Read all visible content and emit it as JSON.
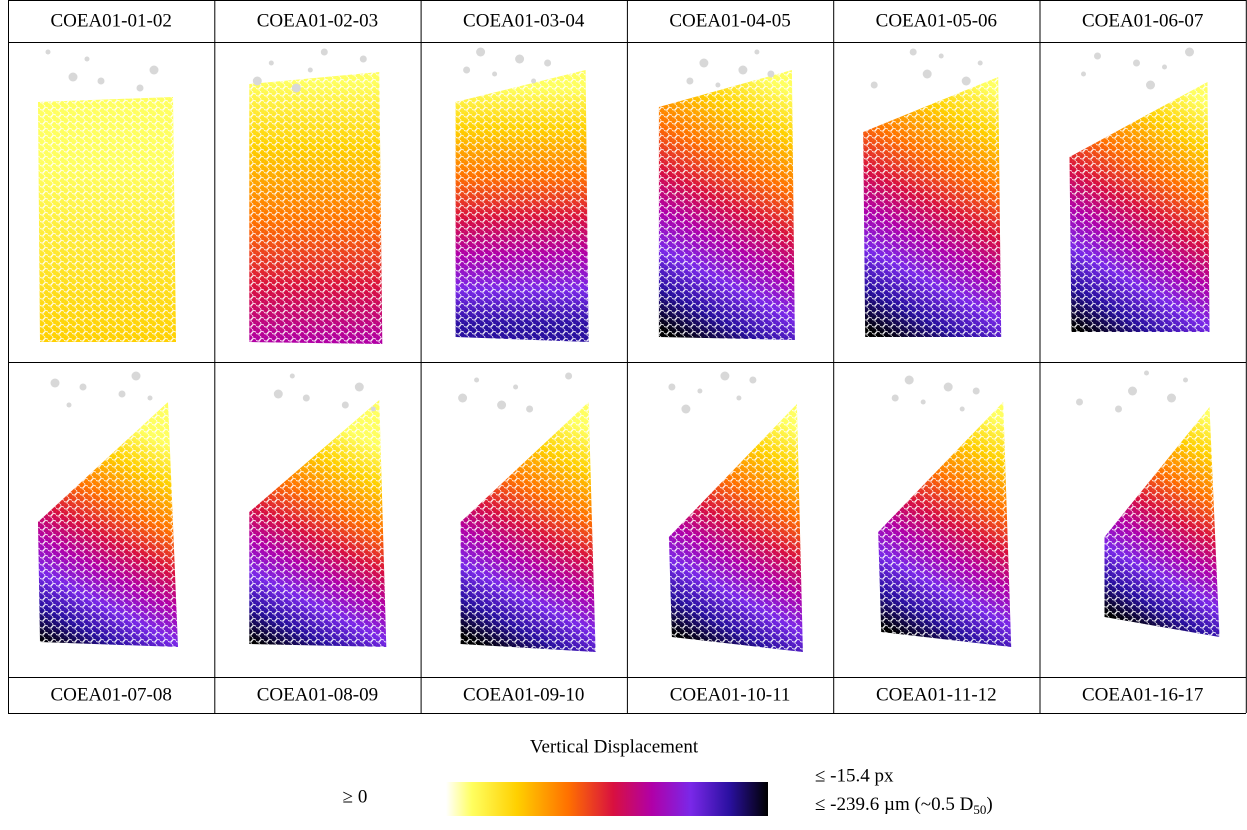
{
  "columns_top": [
    "COEA01-01-02",
    "COEA01-02-03",
    "COEA01-03-04",
    "COEA01-04-05",
    "COEA01-05-06",
    "COEA01-06-07"
  ],
  "columns_bottom": [
    "COEA01-07-08",
    "COEA01-08-09",
    "COEA01-09-10",
    "COEA01-10-11",
    "COEA01-11-12",
    "COEA01-16-17"
  ],
  "colorbar": {
    "title": "Vertical Displacement",
    "min_label": "≥ 0",
    "max_label_px": "≤ -15.4 px",
    "max_label_um": {
      "text": "≤ -239.6 µm (~0.5 D",
      "subscript": "50",
      "suffix": ")"
    }
  }
}
